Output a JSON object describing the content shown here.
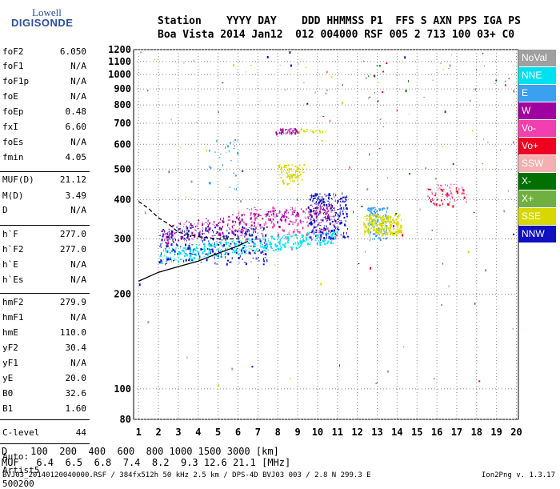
{
  "logo": {
    "brand": "Lowell",
    "product": "DIGISONDE"
  },
  "header": {
    "line1": "Station    YYYY DAY    DDD HHMMSS P1  FFS S AXN PPS IGA PS",
    "line2": "Boa Vista 2014 Jan12  012 004000 RSF 005 2 713 100 03+ C0"
  },
  "params": [
    {
      "label": "foF2",
      "value": "6.050"
    },
    {
      "label": "foF1",
      "value": "N/A"
    },
    {
      "label": "foF1p",
      "value": "N/A"
    },
    {
      "label": "foE",
      "value": "N/A"
    },
    {
      "label": "foEp",
      "value": "0.48"
    },
    {
      "label": "fxI",
      "value": "6.60"
    },
    {
      "label": "foEs",
      "value": "N/A"
    },
    {
      "label": "fmin",
      "value": "4.05"
    },
    {
      "label": "MUF(D)",
      "value": "21.12"
    },
    {
      "label": "M(D)",
      "value": "3.49"
    },
    {
      "label": "D",
      "value": "N/A"
    },
    {
      "label": "h`F",
      "value": "277.0"
    },
    {
      "label": "h`F2",
      "value": "277.0"
    },
    {
      "label": "h`E",
      "value": "N/A"
    },
    {
      "label": "h`Es",
      "value": "N/A"
    },
    {
      "label": "hmF2",
      "value": "279.9"
    },
    {
      "label": "hmF1",
      "value": "N/A"
    },
    {
      "label": "hmE",
      "value": "110.0"
    },
    {
      "label": "yF2",
      "value": "30.4"
    },
    {
      "label": "yF1",
      "value": "N/A"
    },
    {
      "label": "yE",
      "value": "20.0"
    },
    {
      "label": "B0",
      "value": "32.6"
    },
    {
      "label": "B1",
      "value": "1.60"
    },
    {
      "label": "C-level",
      "value": "44"
    }
  ],
  "auto": [
    "Auto:",
    "Artist5",
    "500200"
  ],
  "legend": [
    {
      "label": "NoVal",
      "color": "#a0a0a0"
    },
    {
      "label": "NNE",
      "color": "#00e0f0"
    },
    {
      "label": "E",
      "color": "#3aa0f0"
    },
    {
      "label": "W",
      "color": "#a000a0"
    },
    {
      "label": "Vo-",
      "color": "#f040b0"
    },
    {
      "label": "Vo+",
      "color": "#f00020"
    },
    {
      "label": "SSW",
      "color": "#f4b0b0"
    },
    {
      "label": "X-",
      "color": "#007000"
    },
    {
      "label": "X+",
      "color": "#70b040"
    },
    {
      "label": "SSE",
      "color": "#d8d800"
    },
    {
      "label": "NNW",
      "color": "#1010c0"
    }
  ],
  "chart_data": {
    "type": "scatter",
    "title": "",
    "xlabel": "",
    "ylabel": "",
    "xlim": [
      0.75,
      20.1
    ],
    "ylim": [
      80,
      1200
    ],
    "y_scale": "log",
    "xticks": [
      1,
      2,
      3,
      4,
      5,
      6,
      7,
      8,
      9,
      10,
      11,
      12,
      13,
      14,
      15,
      16,
      17,
      18,
      19,
      20
    ],
    "yticks": [
      80,
      100,
      200,
      300,
      400,
      500,
      600,
      700,
      800,
      900,
      1000,
      1100,
      1200
    ],
    "grid": true,
    "legend_position": "right",
    "clusters": [
      {
        "name": "NNE",
        "color": "#00e0f0",
        "x": [
          2.0,
          11.0
        ],
        "y": [
          250,
          320
        ],
        "n": 420
      },
      {
        "name": "NNW",
        "color": "#1010c0",
        "x": [
          2.0,
          7.5
        ],
        "y": [
          250,
          330
        ],
        "n": 300
      },
      {
        "name": "NNW",
        "color": "#1010c0",
        "x": [
          9.5,
          11.5
        ],
        "y": [
          300,
          420
        ],
        "n": 260
      },
      {
        "name": "W",
        "color": "#a000a0",
        "x": [
          2.2,
          11.0
        ],
        "y": [
          290,
          390
        ],
        "n": 320
      },
      {
        "name": "Vo-",
        "color": "#f040b0",
        "x": [
          6.0,
          11.0
        ],
        "y": [
          300,
          380
        ],
        "n": 140
      },
      {
        "name": "E",
        "color": "#3aa0f0",
        "x": [
          12.5,
          13.5
        ],
        "y": [
          300,
          380
        ],
        "n": 120
      },
      {
        "name": "SSE",
        "color": "#d8d800",
        "x": [
          12.3,
          14.2
        ],
        "y": [
          310,
          360
        ],
        "n": 260
      },
      {
        "name": "SSE",
        "color": "#d8d800",
        "x": [
          8.0,
          9.3
        ],
        "y": [
          450,
          520
        ],
        "n": 90
      },
      {
        "name": "W",
        "color": "#a000a0",
        "x": [
          7.8,
          9.0
        ],
        "y": [
          650,
          675
        ],
        "n": 40
      },
      {
        "name": "SSE",
        "color": "#d8d800",
        "x": [
          9.0,
          10.5
        ],
        "y": [
          660,
          675
        ],
        "n": 20
      },
      {
        "name": "Vo+",
        "color": "#f00020",
        "x": [
          15.5,
          17.5
        ],
        "y": [
          380,
          440
        ],
        "n": 40
      },
      {
        "name": "Vo-",
        "color": "#f040b0",
        "x": [
          15.5,
          17.5
        ],
        "y": [
          390,
          450
        ],
        "n": 30
      },
      {
        "name": "E",
        "color": "#3aa0f0",
        "x": [
          4.5,
          6.0
        ],
        "y": [
          430,
          620
        ],
        "n": 30
      },
      {
        "name": "X-",
        "color": "#007000",
        "x": [
          12.0,
          20.0
        ],
        "y": [
          90,
          1150
        ],
        "n": 30
      },
      {
        "name": "Vo+",
        "color": "#f00020",
        "x": [
          10.0,
          20.0
        ],
        "y": [
          90,
          1150
        ],
        "n": 30
      },
      {
        "name": "NNW",
        "color": "#1010c0",
        "x": [
          1.0,
          20.0
        ],
        "y": [
          90,
          1200
        ],
        "n": 30
      },
      {
        "name": "SSE",
        "color": "#d8d800",
        "x": [
          1.0,
          20.0
        ],
        "y": [
          90,
          1200
        ],
        "n": 25
      },
      {
        "name": "NoVal",
        "color": "#a0a0a0",
        "x": [
          1.0,
          20.0
        ],
        "y": [
          90,
          1200
        ],
        "n": 40
      }
    ],
    "trace_lower": {
      "x": [
        1.0,
        2.0,
        3.0,
        4.0,
        5.0,
        6.0,
        6.5
      ],
      "y": [
        220,
        235,
        245,
        255,
        270,
        285,
        295
      ]
    },
    "trace_upper": {
      "x": [
        1.0,
        1.5,
        2.0,
        2.5,
        3.0,
        4.0,
        5.0,
        6.05
      ],
      "y": [
        395,
        375,
        350,
        335,
        315,
        305,
        300,
        300
      ]
    }
  },
  "footer": {
    "line_d": "D    100  200  400  600  800 1000 1500 3000 [km]",
    "line_muf": "MUF   6.4  6.5  6.8  7.4  8.2  9.3 12.6 21.1 [MHz]",
    "info": "BVJ03_20140120040000.RSF / 384fx512h 50 kHz 2.5 km / DPS-4D BVJ03 003 / 2.8 N 299.3 E",
    "version": "Ion2Png v. 1.3.17"
  }
}
